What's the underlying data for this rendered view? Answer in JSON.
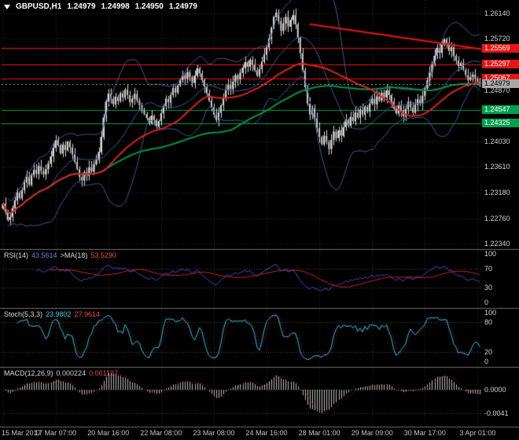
{
  "header": {
    "symbol_period": "GBPUSD,H1",
    "open": "1.24979",
    "high": "1.24998",
    "low": "1.24950",
    "close": "1.24979"
  },
  "colors": {
    "background": "#000000",
    "grid": "#2e2e2e",
    "level_line": "#4f4f4f",
    "candle": "#d9d9d9",
    "candle_up_fill": "#ededed",
    "candle_down_fill": "#000000",
    "bollinger": "#3f5d92",
    "ma_red": "#e02020",
    "ma_green": "#009646",
    "resistance_line": "#f21212",
    "support_line": "#00a14d",
    "current_line": "#999999",
    "trendline": "#f21212",
    "rsi_line": "#4a4ac8",
    "rsi_ma_line": "#cc2424",
    "stoch_line": "#22c8ea",
    "stoch_signal_line": "#d02424",
    "macd_histogram": "#bbbbbb",
    "macd_signal_line": "#d02424",
    "axis_text": "#d4d4d4",
    "time_text": "#c2c2c2",
    "divider": "#6e6e6e"
  },
  "price_axis": {
    "plain": [
      {
        "label": "1.26140",
        "price": 1.2614
      },
      {
        "label": "1.25720",
        "price": 1.2572
      },
      {
        "label": "1.24870",
        "price": 1.2487
      },
      {
        "label": "1.24030",
        "price": 1.2403
      },
      {
        "label": "1.23610",
        "price": 1.2361
      },
      {
        "label": "1.23180",
        "price": 1.2318
      },
      {
        "label": "1.22760",
        "price": 1.2276
      },
      {
        "label": "1.22340",
        "price": 1.2234
      }
    ],
    "badges": [
      {
        "label": "1.25569",
        "price": 1.25569,
        "type": "resistance"
      },
      {
        "label": "1.25297",
        "price": 1.25297,
        "type": "resistance"
      },
      {
        "label": "1.25067",
        "price": 1.25067,
        "type": "resistance"
      },
      {
        "label": "1.24979",
        "price": 1.24979,
        "type": "current"
      },
      {
        "label": "1.24547",
        "price": 1.24547,
        "type": "support"
      },
      {
        "label": "1.24325",
        "price": 1.24325,
        "type": "support"
      }
    ]
  },
  "indicators": {
    "rsi": {
      "name": "RSI(14)",
      "value": "43.5614",
      "ma_name": ">MA(18)",
      "ma_value": "53.5290",
      "axis_labels": [
        {
          "label": "100",
          "value": 100
        },
        {
          "label": "70",
          "value": 70
        },
        {
          "label": "30",
          "value": 30
        },
        {
          "label": "0",
          "value": 0
        }
      ],
      "level_lines": [
        70,
        30
      ]
    },
    "stoch": {
      "name": "Stoch(5,3,3)",
      "value": "23.9802",
      "signal": "27.9614",
      "axis_labels": [
        {
          "label": "100",
          "value": 100
        },
        {
          "label": "80",
          "value": 80
        },
        {
          "label": "20",
          "value": 20
        },
        {
          "label": "0",
          "value": 0
        }
      ],
      "level_lines": [
        80,
        20
      ]
    },
    "macd": {
      "name": "MACD(12,26,9)",
      "value": "0.000224",
      "signal": "0.001127",
      "axis_labels": [
        {
          "label": "0.0000",
          "value": 0
        },
        {
          "label": "-0.0041",
          "value": -0.0041
        }
      ],
      "level_lines": [
        0,
        -0.0041
      ]
    }
  },
  "time_axis": {
    "labels": [
      "15 Mar 2017",
      "17 Mar 07:00",
      "20 Mar 16:00",
      "22 Mar 08:00",
      "23 Mar 08:00",
      "24 Mar 16:00",
      "28 Mar 01:00",
      "29 Mar 09:00",
      "30 Mar 17:00",
      "3 Apr 01:00"
    ],
    "tick_indices": [
      0,
      22,
      44,
      66,
      88,
      110,
      132,
      154,
      176,
      198
    ]
  },
  "chart_data": {
    "type": "candlestick",
    "symbol": "GBPUSD",
    "timeframe": "H1",
    "price_range": {
      "min": 1.2225,
      "max": 1.2636
    },
    "closes": [
      1.23,
      1.2287,
      1.2273,
      1.2278,
      1.2292,
      1.2305,
      1.2318,
      1.2309,
      1.2322,
      1.2335,
      1.2344,
      1.2331,
      1.2347,
      1.2356,
      1.2349,
      1.2362,
      1.2354,
      1.2348,
      1.2357,
      1.2366,
      1.2378,
      1.2392,
      1.2405,
      1.2396,
      1.2383,
      1.2397,
      1.2388,
      1.2402,
      1.2393,
      1.2381,
      1.2369,
      1.2357,
      1.2344,
      1.2338,
      1.2352,
      1.2346,
      1.236,
      1.2353,
      1.2365,
      1.2372,
      1.2385,
      1.241,
      1.2442,
      1.2468,
      1.2481,
      1.2473,
      1.2464,
      1.2476,
      1.2469,
      1.2482,
      1.2475,
      1.2488,
      1.2479,
      1.2467,
      1.2473,
      1.2481,
      1.247,
      1.2462,
      1.2455,
      1.2448,
      1.2441,
      1.2433,
      1.2445,
      1.2438,
      1.2427,
      1.2436,
      1.2449,
      1.2461,
      1.2473,
      1.2467,
      1.2479,
      1.2491,
      1.2483,
      1.2495,
      1.2504,
      1.2512,
      1.2506,
      1.2517,
      1.2509,
      1.2499,
      1.2511,
      1.2523,
      1.2515,
      1.2504,
      1.2493,
      1.2482,
      1.247,
      1.2459,
      1.2447,
      1.2438,
      1.245,
      1.2462,
      1.2475,
      1.2487,
      1.2496,
      1.2489,
      1.2501,
      1.2512,
      1.2505,
      1.2516,
      1.2524,
      1.2533,
      1.2526,
      1.2537,
      1.2529,
      1.252,
      1.2511,
      1.2522,
      1.2534,
      1.2546,
      1.2558,
      1.2572,
      1.259,
      1.2608,
      1.2615,
      1.2601,
      1.2585,
      1.2597,
      1.2608,
      1.2592,
      1.2603,
      1.2611,
      1.2596,
      1.2574,
      1.2548,
      1.252,
      1.2492,
      1.2465,
      1.2447,
      1.2458,
      1.2441,
      1.2425,
      1.241,
      1.2398,
      1.2412,
      1.2402,
      1.239,
      1.2405,
      1.2419,
      1.2408,
      1.2421,
      1.2412,
      1.2426,
      1.2438,
      1.2429,
      1.2443,
      1.2436,
      1.245,
      1.2442,
      1.2455,
      1.2447,
      1.246,
      1.2452,
      1.2465,
      1.2473,
      1.2464,
      1.2477,
      1.247,
      1.2483,
      1.2475,
      1.2487,
      1.2479,
      1.2468,
      1.2457,
      1.2449,
      1.2462,
      1.2453,
      1.2444,
      1.2456,
      1.2468,
      1.2459,
      1.245,
      1.2463,
      1.2472,
      1.2465,
      1.2478,
      1.249,
      1.2503,
      1.2516,
      1.253,
      1.2544,
      1.2557,
      1.2549,
      1.2562,
      1.2571,
      1.2565,
      1.2552,
      1.2558,
      1.2544,
      1.2536,
      1.2527,
      1.2532,
      1.2521,
      1.2512,
      1.2504,
      1.2509,
      1.2513,
      1.2506,
      1.2501,
      1.24979
    ],
    "levels": {
      "resistance": [
        1.25569,
        1.25297,
        1.25067
      ],
      "support": [
        1.24547,
        1.24325
      ],
      "current_price": 1.24979
    },
    "trendline": {
      "from_index": 128,
      "from_price": 1.2596,
      "to_index": 200,
      "to_price": 1.2555
    },
    "overlays": {
      "bollinger_period": 20,
      "bollinger_dev": 2,
      "ma_fast_period": 44,
      "ma_slow_period": 96
    }
  }
}
